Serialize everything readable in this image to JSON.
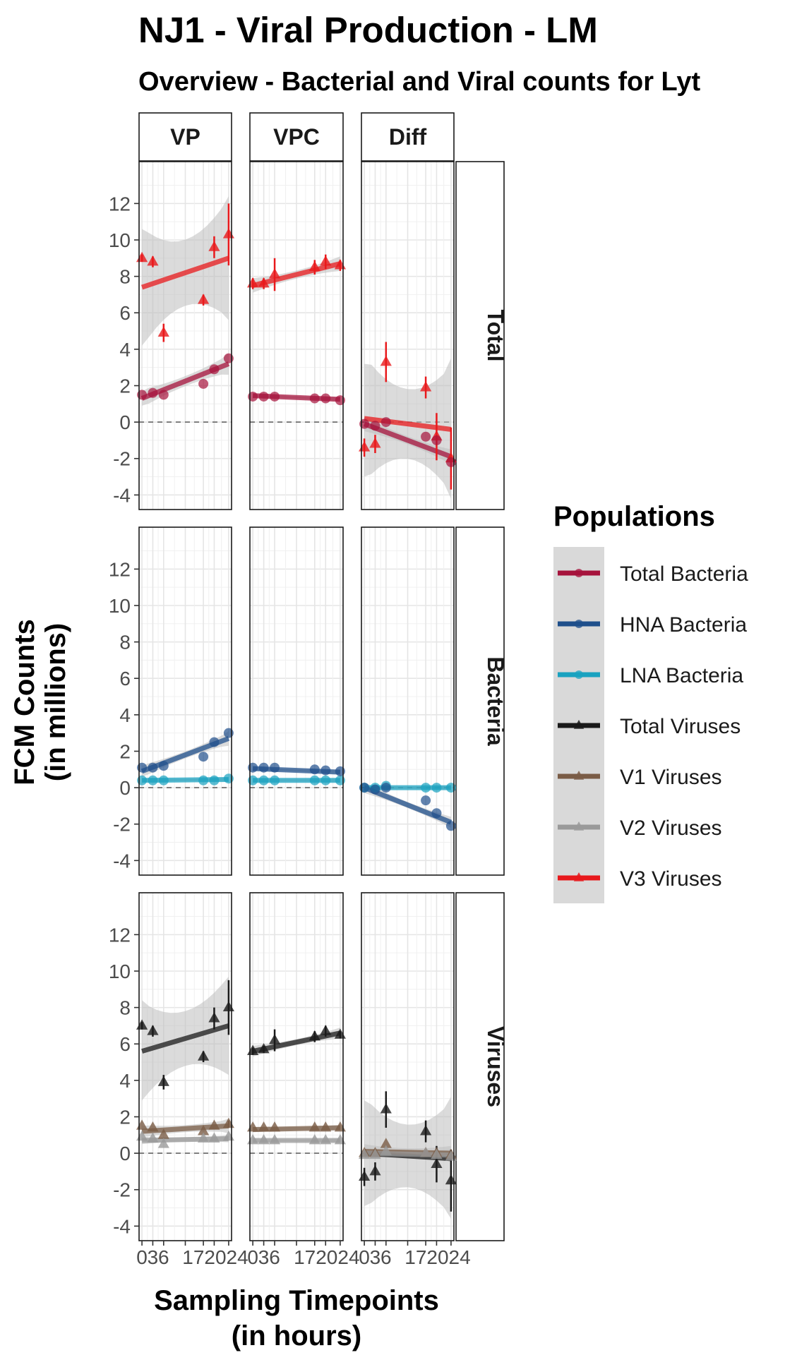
{
  "title": "NJ1 - Viral Production - LM",
  "subtitle": "Overview - Bacterial and Viral counts for Lyt",
  "chart_data": {
    "type": "scatter",
    "facet_cols": [
      "VP",
      "VPC",
      "Diff"
    ],
    "facet_rows": [
      "Total",
      "Bacteria",
      "Viruses"
    ],
    "x_ticks": [
      0,
      3,
      6,
      12,
      17,
      20,
      24
    ],
    "x_tick_labels": [
      "0",
      "3",
      "6",
      "",
      "",
      "",
      ""
    ],
    "x_tick_overlap_label": "172024",
    "xlim": [
      -0.8,
      24.8
    ],
    "y_ticks": [
      -4,
      -2,
      0,
      2,
      4,
      6,
      8,
      10,
      12
    ],
    "ylim": [
      -4.8,
      14.3
    ],
    "xlabel": "Sampling Timepoints\n(in hours)",
    "ylabel": "FCM Counts\n(in millions)",
    "legend_title": "Populations",
    "legend_position": "right",
    "populations": [
      {
        "name": "Total Bacteria",
        "color": "#a6133c",
        "marker": "circle"
      },
      {
        "name": "HNA Bacteria",
        "color": "#1f4f8b",
        "marker": "circle"
      },
      {
        "name": "LNA Bacteria",
        "color": "#1aa2c0",
        "marker": "circle"
      },
      {
        "name": "Total Viruses",
        "color": "#1a1a1a",
        "marker": "triangle"
      },
      {
        "name": "V1 Viruses",
        "color": "#7a5c46",
        "marker": "triangle"
      },
      {
        "name": "V2 Viruses",
        "color": "#9a9a9a",
        "marker": "triangle"
      },
      {
        "name": "V3 Viruses",
        "color": "#e8191c",
        "marker": "triangle"
      }
    ],
    "panels": [
      {
        "row": "Total",
        "col": "VP",
        "series": [
          {
            "population": "V3 Viruses",
            "x": [
              0,
              3,
              6,
              17,
              20,
              24
            ],
            "y": [
              9.0,
              8.8,
              4.9,
              6.7,
              9.6,
              10.3
            ],
            "err": [
              0.2,
              0.3,
              0.5,
              0.3,
              0.6,
              1.7
            ],
            "fit": [
              7.4,
              9.0
            ],
            "band": [
              [
                4.2,
                10.6
              ],
              [
                5.6,
                12.4
              ]
            ]
          },
          {
            "population": "Total Bacteria",
            "x": [
              0,
              3,
              6,
              17,
              20,
              24
            ],
            "y": [
              1.5,
              1.6,
              1.5,
              2.1,
              2.9,
              3.5
            ],
            "err": [
              0.1,
              0.1,
              0.1,
              0.1,
              0.1,
              0.1
            ],
            "fit": [
              1.3,
              3.2
            ],
            "band": [
              [
                0.9,
                1.7
              ],
              [
                2.6,
                3.8
              ]
            ]
          }
        ]
      },
      {
        "row": "Total",
        "col": "VPC",
        "series": [
          {
            "population": "V3 Viruses",
            "x": [
              0,
              3,
              6,
              17,
              20,
              24
            ],
            "y": [
              7.6,
              7.6,
              8.1,
              8.5,
              8.8,
              8.6
            ],
            "err": [
              0.3,
              0.3,
              0.9,
              0.4,
              0.4,
              0.3
            ],
            "fit": [
              7.5,
              8.7
            ],
            "band": [
              [
                7.1,
                7.9
              ],
              [
                8.3,
                9.1
              ]
            ]
          },
          {
            "population": "Total Bacteria",
            "x": [
              0,
              3,
              6,
              17,
              20,
              24
            ],
            "y": [
              1.4,
              1.4,
              1.4,
              1.3,
              1.3,
              1.2
            ],
            "err": [
              0.05,
              0.05,
              0.05,
              0.05,
              0.05,
              0.05
            ],
            "fit": [
              1.45,
              1.25
            ],
            "band": [
              [
                1.35,
                1.55
              ],
              [
                1.15,
                1.35
              ]
            ]
          }
        ]
      },
      {
        "row": "Total",
        "col": "Diff",
        "series": [
          {
            "population": "V3 Viruses",
            "x": [
              0,
              3,
              6,
              17,
              20,
              24
            ],
            "y": [
              -1.4,
              -1.2,
              3.3,
              1.9,
              -0.8,
              -2.0
            ],
            "err": [
              0.5,
              0.5,
              1.1,
              0.6,
              1.3,
              1.7
            ],
            "fit": [
              0.2,
              -0.4
            ],
            "band": [
              [
                -3.0,
                3.2
              ],
              [
                -4.2,
                3.5
              ]
            ]
          },
          {
            "population": "Total Bacteria",
            "x": [
              0,
              3,
              6,
              17,
              20,
              24
            ],
            "y": [
              -0.1,
              -0.2,
              0.0,
              -0.8,
              -1.0,
              -2.2
            ],
            "err": [
              0.1,
              0.1,
              0.1,
              0.1,
              0.1,
              0.1
            ],
            "fit": [
              -0.1,
              -1.9
            ],
            "band": [
              [
                -0.5,
                0.3
              ],
              [
                -2.3,
                -1.5
              ]
            ]
          }
        ]
      },
      {
        "row": "Bacteria",
        "col": "VP",
        "series": [
          {
            "population": "LNA Bacteria",
            "x": [
              0,
              3,
              6,
              17,
              20,
              24
            ],
            "y": [
              0.4,
              0.4,
              0.4,
              0.4,
              0.4,
              0.5
            ],
            "err": [
              0.05,
              0.05,
              0.05,
              0.05,
              0.05,
              0.05
            ],
            "fit": [
              0.4,
              0.45
            ],
            "band": [
              [
                0.3,
                0.5
              ],
              [
                0.35,
                0.55
              ]
            ]
          },
          {
            "population": "HNA Bacteria",
            "x": [
              0,
              3,
              6,
              17,
              20,
              24
            ],
            "y": [
              1.1,
              1.1,
              1.2,
              1.7,
              2.5,
              3.0
            ],
            "err": [
              0.05,
              0.05,
              0.05,
              0.1,
              0.1,
              0.1
            ],
            "fit": [
              0.9,
              2.7
            ],
            "band": [
              [
                0.6,
                1.2
              ],
              [
                2.3,
                3.1
              ]
            ]
          }
        ]
      },
      {
        "row": "Bacteria",
        "col": "VPC",
        "series": [
          {
            "population": "LNA Bacteria",
            "x": [
              0,
              3,
              6,
              17,
              20,
              24
            ],
            "y": [
              0.4,
              0.4,
              0.4,
              0.4,
              0.4,
              0.4
            ],
            "err": [
              0.05,
              0.05,
              0.05,
              0.05,
              0.05,
              0.05
            ],
            "fit": [
              0.4,
              0.4
            ],
            "band": [
              [
                0.3,
                0.5
              ],
              [
                0.3,
                0.5
              ]
            ]
          },
          {
            "population": "HNA Bacteria",
            "x": [
              0,
              3,
              6,
              17,
              20,
              24
            ],
            "y": [
              1.1,
              1.1,
              1.1,
              1.0,
              0.95,
              0.9
            ],
            "err": [
              0.05,
              0.05,
              0.05,
              0.05,
              0.05,
              0.05
            ],
            "fit": [
              1.05,
              0.85
            ],
            "band": [
              [
                0.95,
                1.15
              ],
              [
                0.75,
                0.95
              ]
            ]
          }
        ]
      },
      {
        "row": "Bacteria",
        "col": "Diff",
        "series": [
          {
            "population": "LNA Bacteria",
            "x": [
              0,
              3,
              6,
              17,
              20,
              24
            ],
            "y": [
              0.0,
              0.0,
              0.1,
              0.0,
              0.0,
              0.0
            ],
            "err": [
              0.05,
              0.05,
              0.05,
              0.05,
              0.05,
              0.05
            ],
            "fit": [
              0.0,
              0.0
            ],
            "band": [
              [
                -0.1,
                0.1
              ],
              [
                -0.1,
                0.1
              ]
            ]
          },
          {
            "population": "HNA Bacteria",
            "x": [
              0,
              3,
              6,
              17,
              20,
              24
            ],
            "y": [
              0.0,
              -0.1,
              0.0,
              -0.7,
              -1.4,
              -2.1
            ],
            "err": [
              0.05,
              0.05,
              0.05,
              0.05,
              0.05,
              0.05
            ],
            "fit": [
              0.0,
              -1.9
            ],
            "band": [
              [
                -0.3,
                0.3
              ],
              [
                -2.2,
                -1.6
              ]
            ]
          }
        ]
      },
      {
        "row": "Viruses",
        "col": "VP",
        "series": [
          {
            "population": "Total Viruses",
            "x": [
              0,
              3,
              6,
              17,
              20,
              24
            ],
            "y": [
              7.0,
              6.7,
              3.9,
              5.3,
              7.4,
              8.0
            ],
            "err": [
              0.2,
              0.3,
              0.4,
              0.3,
              0.6,
              1.5
            ],
            "fit": [
              5.6,
              7.0
            ],
            "band": [
              [
                2.9,
                8.4
              ],
              [
                4.3,
                9.7
              ]
            ]
          },
          {
            "population": "V1 Viruses",
            "x": [
              0,
              3,
              6,
              17,
              20,
              24
            ],
            "y": [
              1.5,
              1.4,
              1.0,
              1.2,
              1.5,
              1.6
            ],
            "err": [
              0.1,
              0.1,
              0.1,
              0.1,
              0.1,
              0.2
            ],
            "fit": [
              1.2,
              1.5
            ],
            "band": [
              [
                0.9,
                1.5
              ],
              [
                1.1,
                1.9
              ]
            ]
          },
          {
            "population": "V2 Viruses",
            "x": [
              0,
              3,
              6,
              17,
              20,
              24
            ],
            "y": [
              0.9,
              0.8,
              0.5,
              0.8,
              0.8,
              0.9
            ],
            "err": [
              0.05,
              0.05,
              0.05,
              0.05,
              0.05,
              0.05
            ],
            "fit": [
              0.7,
              0.8
            ],
            "band": [
              [
                0.5,
                0.9
              ],
              [
                0.6,
                1.0
              ]
            ]
          }
        ]
      },
      {
        "row": "Viruses",
        "col": "VPC",
        "series": [
          {
            "population": "Total Viruses",
            "x": [
              0,
              3,
              6,
              17,
              20,
              24
            ],
            "y": [
              5.6,
              5.7,
              6.2,
              6.4,
              6.7,
              6.5
            ],
            "err": [
              0.2,
              0.2,
              0.6,
              0.3,
              0.3,
              0.2
            ],
            "fit": [
              5.6,
              6.6
            ],
            "band": [
              [
                5.3,
                5.9
              ],
              [
                6.3,
                6.9
              ]
            ]
          },
          {
            "population": "V1 Viruses",
            "x": [
              0,
              3,
              6,
              17,
              20,
              24
            ],
            "y": [
              1.4,
              1.4,
              1.4,
              1.4,
              1.4,
              1.4
            ],
            "err": [
              0.05,
              0.05,
              0.05,
              0.05,
              0.05,
              0.05
            ],
            "fit": [
              1.3,
              1.4
            ],
            "band": [
              [
                1.15,
                1.45
              ],
              [
                1.25,
                1.55
              ]
            ]
          },
          {
            "population": "V2 Viruses",
            "x": [
              0,
              3,
              6,
              17,
              20,
              24
            ],
            "y": [
              0.7,
              0.7,
              0.7,
              0.7,
              0.7,
              0.7
            ],
            "err": [
              0.05,
              0.05,
              0.05,
              0.05,
              0.05,
              0.05
            ],
            "fit": [
              0.7,
              0.7
            ],
            "band": [
              [
                0.6,
                0.8
              ],
              [
                0.6,
                0.8
              ]
            ]
          }
        ]
      },
      {
        "row": "Viruses",
        "col": "Diff",
        "series": [
          {
            "population": "Total Viruses",
            "x": [
              0,
              3,
              6,
              17,
              20,
              24
            ],
            "y": [
              -1.3,
              -1.0,
              2.4,
              1.2,
              -0.6,
              -1.5
            ],
            "err": [
              0.5,
              0.5,
              1.0,
              0.6,
              1.0,
              1.7
            ],
            "fit": [
              0.0,
              -0.3
            ],
            "band": [
              [
                -2.9,
                2.9
              ],
              [
                -3.6,
                3.1
              ]
            ]
          },
          {
            "population": "V1 Viruses",
            "x": [
              0,
              3,
              6,
              17,
              20,
              24
            ],
            "y": [
              0.0,
              0.0,
              0.5,
              0.0,
              0.0,
              -0.1
            ],
            "err": [
              0.1,
              0.1,
              0.1,
              0.1,
              0.1,
              0.1
            ],
            "fit": [
              0.1,
              0.0
            ],
            "band": [
              [
                -0.3,
                0.5
              ],
              [
                -0.4,
                0.4
              ]
            ]
          },
          {
            "population": "V2 Viruses",
            "x": [
              0,
              3,
              6,
              17,
              20,
              24
            ],
            "y": [
              -0.1,
              -0.1,
              0.1,
              0.0,
              -0.1,
              -0.2
            ],
            "err": [
              0.05,
              0.05,
              0.05,
              0.05,
              0.05,
              0.05
            ],
            "fit": [
              0.0,
              -0.1
            ],
            "band": [
              [
                -0.3,
                0.3
              ],
              [
                -0.4,
                0.2
              ]
            ]
          }
        ]
      }
    ]
  }
}
